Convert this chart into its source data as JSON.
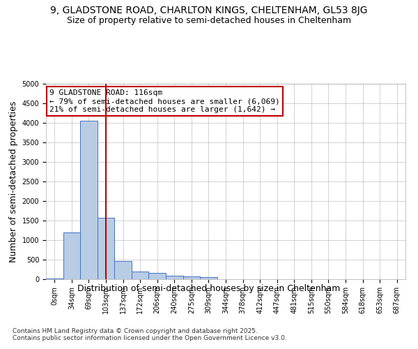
{
  "title_line1": "9, GLADSTONE ROAD, CHARLTON KINGS, CHELTENHAM, GL53 8JG",
  "title_line2": "Size of property relative to semi-detached houses in Cheltenham",
  "xlabel": "Distribution of semi-detached houses by size in Cheltenham",
  "ylabel": "Number of semi-detached properties",
  "footnote": "Contains HM Land Registry data © Crown copyright and database right 2025.\nContains public sector information licensed under the Open Government Licence v3.0.",
  "bin_labels": [
    "0sqm",
    "34sqm",
    "69sqm",
    "103sqm",
    "137sqm",
    "172sqm",
    "206sqm",
    "240sqm",
    "275sqm",
    "309sqm",
    "344sqm",
    "378sqm",
    "412sqm",
    "447sqm",
    "481sqm",
    "515sqm",
    "550sqm",
    "584sqm",
    "618sqm",
    "653sqm",
    "687sqm"
  ],
  "bar_values": [
    10,
    1200,
    4050,
    1580,
    460,
    195,
    155,
    95,
    70,
    50,
    0,
    0,
    0,
    0,
    0,
    0,
    0,
    0,
    0,
    0,
    0
  ],
  "bar_color": "#b8cce4",
  "bar_edge_color": "#4472c4",
  "vline_x": 3,
  "vline_color": "#c00000",
  "annotation_text": "9 GLADSTONE ROAD: 116sqm\n← 79% of semi-detached houses are smaller (6,069)\n21% of semi-detached houses are larger (1,642) →",
  "annotation_box_color": "#ffffff",
  "annotation_box_edge": "#c00000",
  "ylim": [
    0,
    5000
  ],
  "yticks": [
    0,
    500,
    1000,
    1500,
    2000,
    2500,
    3000,
    3500,
    4000,
    4500,
    5000
  ],
  "background_color": "#ffffff",
  "grid_color": "#c0c0c0",
  "title_fontsize": 10,
  "subtitle_fontsize": 9,
  "axis_label_fontsize": 9,
  "tick_fontsize": 7,
  "annotation_fontsize": 8
}
